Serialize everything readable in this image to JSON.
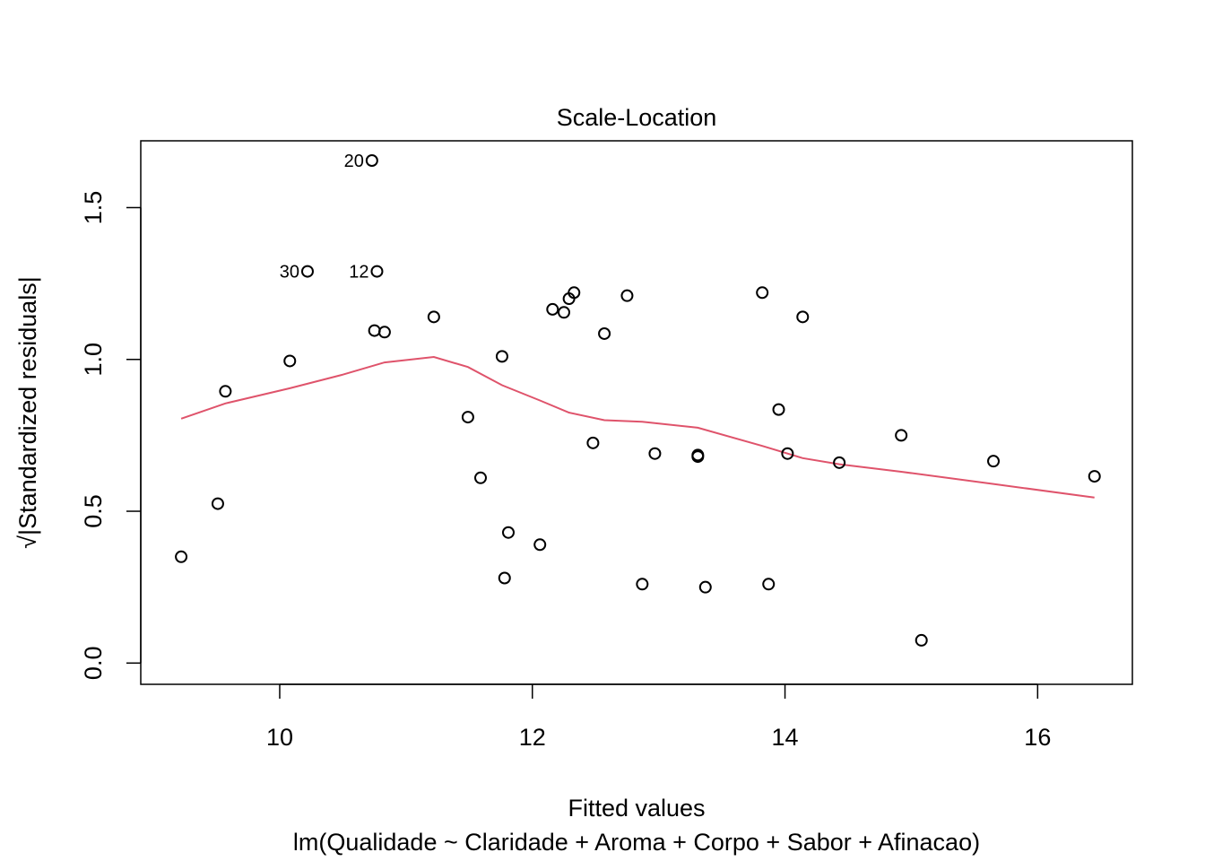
{
  "chart_data": {
    "type": "scatter",
    "title": "Scale-Location",
    "xlabel": "Fitted values",
    "sublabel": "lm(Qualidade ~ Claridade + Aroma + Corpo + Sabor + Afinacao)",
    "ylabel_sqrt": "√",
    "ylabel": "|Standardized residuals|",
    "xlim": [
      8.9,
      16.75
    ],
    "ylim": [
      -0.07,
      1.72
    ],
    "x_ticks": [
      10,
      12,
      14,
      16
    ],
    "x_tick_labels": [
      "10",
      "12",
      "14",
      "16"
    ],
    "y_ticks": [
      0.0,
      0.5,
      1.0,
      1.5
    ],
    "y_tick_labels": [
      "0.0",
      "0.5",
      "1.0",
      "1.5"
    ],
    "grid": false,
    "colors": {
      "points": "#000000",
      "smooth_line": "#DF536B",
      "frame": "#000000"
    },
    "points": [
      {
        "x": 9.22,
        "y": 0.35
      },
      {
        "x": 9.51,
        "y": 0.525
      },
      {
        "x": 9.57,
        "y": 0.895
      },
      {
        "x": 10.08,
        "y": 0.995
      },
      {
        "x": 10.22,
        "y": 1.29,
        "label": "30"
      },
      {
        "x": 10.73,
        "y": 1.655,
        "label": "20"
      },
      {
        "x": 10.77,
        "y": 1.29,
        "label": "12"
      },
      {
        "x": 10.75,
        "y": 1.095
      },
      {
        "x": 10.83,
        "y": 1.09
      },
      {
        "x": 11.22,
        "y": 1.14
      },
      {
        "x": 11.49,
        "y": 0.81
      },
      {
        "x": 11.59,
        "y": 0.61
      },
      {
        "x": 11.76,
        "y": 1.01
      },
      {
        "x": 11.78,
        "y": 0.28
      },
      {
        "x": 11.81,
        "y": 0.43
      },
      {
        "x": 12.06,
        "y": 0.39
      },
      {
        "x": 12.16,
        "y": 1.165
      },
      {
        "x": 12.25,
        "y": 1.155
      },
      {
        "x": 12.29,
        "y": 1.2
      },
      {
        "x": 12.33,
        "y": 1.22
      },
      {
        "x": 12.48,
        "y": 0.725
      },
      {
        "x": 12.57,
        "y": 1.085
      },
      {
        "x": 12.75,
        "y": 1.21
      },
      {
        "x": 12.87,
        "y": 0.26
      },
      {
        "x": 12.97,
        "y": 0.69
      },
      {
        "x": 13.31,
        "y": 0.685
      },
      {
        "x": 13.31,
        "y": 0.68
      },
      {
        "x": 13.37,
        "y": 0.25
      },
      {
        "x": 13.82,
        "y": 1.22
      },
      {
        "x": 13.87,
        "y": 0.26
      },
      {
        "x": 13.95,
        "y": 0.835
      },
      {
        "x": 14.02,
        "y": 0.69
      },
      {
        "x": 14.14,
        "y": 1.14
      },
      {
        "x": 14.43,
        "y": 0.66
      },
      {
        "x": 14.92,
        "y": 0.75
      },
      {
        "x": 15.08,
        "y": 0.075
      },
      {
        "x": 15.65,
        "y": 0.665
      },
      {
        "x": 16.45,
        "y": 0.615
      }
    ],
    "smooth_line": [
      {
        "x": 9.22,
        "y": 0.805
      },
      {
        "x": 9.57,
        "y": 0.855
      },
      {
        "x": 10.08,
        "y": 0.905
      },
      {
        "x": 10.5,
        "y": 0.95
      },
      {
        "x": 10.83,
        "y": 0.99
      },
      {
        "x": 11.22,
        "y": 1.008
      },
      {
        "x": 11.49,
        "y": 0.975
      },
      {
        "x": 11.76,
        "y": 0.915
      },
      {
        "x": 12.06,
        "y": 0.865
      },
      {
        "x": 12.29,
        "y": 0.825
      },
      {
        "x": 12.57,
        "y": 0.8
      },
      {
        "x": 12.87,
        "y": 0.795
      },
      {
        "x": 13.31,
        "y": 0.775
      },
      {
        "x": 13.82,
        "y": 0.715
      },
      {
        "x": 14.14,
        "y": 0.675
      },
      {
        "x": 14.43,
        "y": 0.655
      },
      {
        "x": 14.92,
        "y": 0.63
      },
      {
        "x": 15.65,
        "y": 0.59
      },
      {
        "x": 16.45,
        "y": 0.545
      }
    ]
  }
}
